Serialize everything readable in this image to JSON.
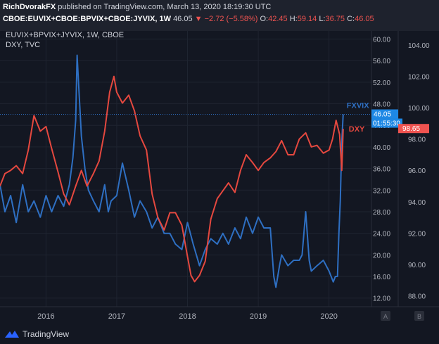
{
  "header": {
    "author": "RichDvorakFX",
    "published_text": "published on TradingView.com, March 13, 2020 18:19:30 UTC",
    "symbol": "CBOE:EUVIX+CBOE:BPVIX+CBOE:JYVIX, 1W",
    "last": "46.05",
    "change": "▼ −2.72 (−5.58%)",
    "o_label": "O:",
    "o_value": "42.45",
    "h_label": "H:",
    "h_value": "59.14",
    "l_label": "L:",
    "l_value": "36.75",
    "c_label": "C:",
    "c_value": "46.05"
  },
  "legend": {
    "line1": "EUVIX+BPVIX+JYVIX, 1W, CBOE",
    "line2": "DXY, TVC"
  },
  "footer": {
    "brand": "TradingView"
  },
  "colors": {
    "fxvix": "#2e6fc2",
    "dxy": "#e5483f",
    "background": "#131722",
    "price_tag_blue": "#1e88e5",
    "price_tag_red": "#ef5350"
  },
  "chart_data": {
    "type": "line",
    "x_tick_labels": [
      "2016",
      "2017",
      "2018",
      "2019",
      "2020"
    ],
    "x_ticks": [
      2016,
      2017,
      2018,
      2019,
      2020
    ],
    "x_range": [
      2015.35,
      2020.6
    ],
    "left_axis": {
      "ticks": [
        12,
        16,
        20,
        24,
        28,
        32,
        36,
        40,
        44,
        48,
        52,
        56,
        60
      ],
      "tick_labels": [
        "12.00",
        "16.00",
        "20.00",
        "24.00",
        "28.00",
        "32.00",
        "36.00",
        "40.00",
        "44.00",
        "48.00",
        "52.00",
        "56.00",
        "60.00"
      ],
      "range": [
        10.4,
        61.5
      ]
    },
    "right_axis": {
      "ticks": [
        88,
        90,
        92,
        94,
        96,
        98,
        100,
        102,
        104
      ],
      "tick_labels": [
        "88.00",
        "90.00",
        "92.00",
        "94.00",
        "96.00",
        "98.00",
        "100.00",
        "102.00",
        "104.00"
      ],
      "range": [
        87.3,
        104.9
      ]
    },
    "scale_buttons": [
      "A",
      "B"
    ],
    "series": [
      {
        "name": "FXVIX",
        "axis": "left",
        "last_label": "46.05",
        "countdown_label": "01:55:30",
        "x": [
          2015.35,
          2015.42,
          2015.5,
          2015.58,
          2015.67,
          2015.75,
          2015.83,
          2015.92,
          2016.0,
          2016.08,
          2016.17,
          2016.25,
          2016.33,
          2016.38,
          2016.42,
          2016.44,
          2016.46,
          2016.5,
          2016.55,
          2016.6,
          2016.67,
          2016.75,
          2016.83,
          2016.88,
          2016.92,
          2017.0,
          2017.08,
          2017.17,
          2017.25,
          2017.33,
          2017.42,
          2017.5,
          2017.58,
          2017.67,
          2017.75,
          2017.83,
          2017.92,
          2018.0,
          2018.08,
          2018.17,
          2018.25,
          2018.33,
          2018.42,
          2018.5,
          2018.58,
          2018.67,
          2018.75,
          2018.83,
          2018.92,
          2019.0,
          2019.08,
          2019.17,
          2019.22,
          2019.25,
          2019.3,
          2019.33,
          2019.42,
          2019.5,
          2019.58,
          2019.62,
          2019.67,
          2019.72,
          2019.75,
          2019.83,
          2019.92,
          2020.0,
          2020.03,
          2020.06,
          2020.09,
          2020.12,
          2020.14,
          2020.16,
          2020.18,
          2020.2
        ],
        "y": [
          33,
          28,
          31,
          26,
          33,
          28,
          30,
          27,
          31,
          28,
          31,
          29,
          33,
          38,
          45,
          57,
          52,
          42,
          36,
          32,
          30,
          28,
          33,
          28,
          30,
          31,
          37,
          32,
          27,
          30,
          28,
          25,
          27,
          24,
          24,
          22,
          21,
          26,
          22,
          18,
          21,
          23,
          22,
          24,
          22,
          25,
          23,
          27,
          24,
          27,
          25,
          25,
          16,
          14,
          18,
          20,
          18,
          19,
          19,
          20,
          28,
          19,
          17,
          18,
          19,
          17,
          16,
          15,
          16,
          16,
          24,
          30,
          41,
          46.05
        ]
      },
      {
        "name": "DXY",
        "axis": "right",
        "last_label": "98.65",
        "x": [
          2015.35,
          2015.42,
          2015.5,
          2015.58,
          2015.67,
          2015.75,
          2015.83,
          2015.92,
          2016.0,
          2016.08,
          2016.17,
          2016.25,
          2016.33,
          2016.42,
          2016.5,
          2016.58,
          2016.67,
          2016.75,
          2016.83,
          2016.9,
          2016.96,
          2017.0,
          2017.08,
          2017.17,
          2017.25,
          2017.33,
          2017.42,
          2017.5,
          2017.58,
          2017.67,
          2017.75,
          2017.83,
          2017.92,
          2018.0,
          2018.05,
          2018.1,
          2018.17,
          2018.25,
          2018.33,
          2018.42,
          2018.5,
          2018.58,
          2018.67,
          2018.75,
          2018.83,
          2018.92,
          2019.0,
          2019.08,
          2019.17,
          2019.25,
          2019.33,
          2019.42,
          2019.5,
          2019.58,
          2019.67,
          2019.75,
          2019.83,
          2019.92,
          2020.0,
          2020.05,
          2020.1,
          2020.15,
          2020.18,
          2020.2
        ],
        "y": [
          95,
          95.8,
          96,
          96.3,
          95.8,
          97.3,
          99.5,
          98.5,
          98.8,
          97.4,
          95.9,
          94.5,
          93.8,
          95,
          96,
          95,
          95.8,
          96.6,
          98.5,
          101,
          102,
          101,
          100.3,
          100.8,
          99.8,
          98.2,
          97.3,
          94.5,
          93,
          92.2,
          93.3,
          93.3,
          92.5,
          90.5,
          89.3,
          88.9,
          89.3,
          90.2,
          92.9,
          94.2,
          94.7,
          95.2,
          94.6,
          96,
          97,
          96.5,
          96,
          96.5,
          96.8,
          97.2,
          97.9,
          97,
          97,
          98,
          98.4,
          97.5,
          97.6,
          97.1,
          97.3,
          98,
          99.2,
          98.3,
          96,
          98.65
        ]
      }
    ]
  }
}
